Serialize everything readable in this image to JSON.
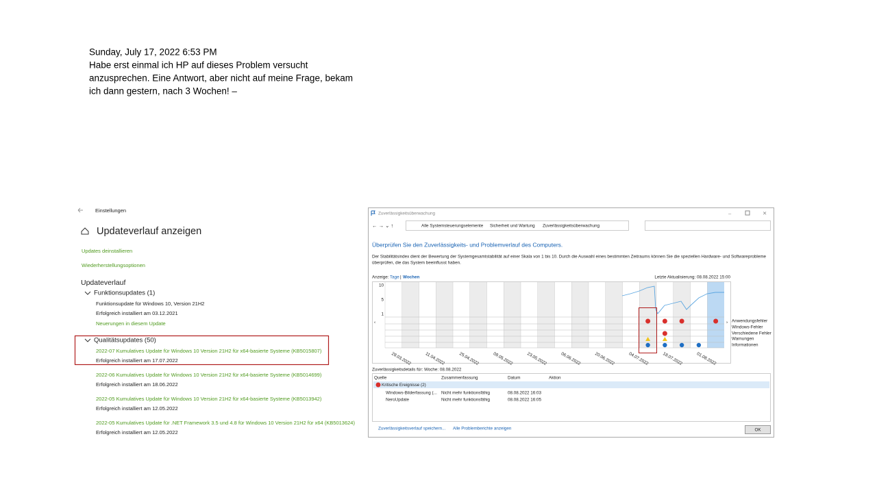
{
  "note": {
    "date": "Sunday, July 17, 2022 6:53 PM",
    "lines": [
      "Habe erst einmal ich HP auf dieses Problem versucht",
      "anzusprechen.  Eine Antwort,  aber nicht auf meine Frage, bekam",
      "ich dann gestern, nach 3 Wochen! –"
    ]
  },
  "settings": {
    "breadcrumb": "Einstellungen",
    "title": "Updateverlauf anzeigen",
    "links": [
      "Updates deinstallieren",
      "Wiederherstellungsoptionen"
    ],
    "section": "Updateverlauf",
    "feature": {
      "heading": "Funktionsupdates (1)",
      "name": "Funktionsupdate für Windows 10, Version 21H2",
      "status": "Erfolgreich installiert am 03.12.2021",
      "link": "Neuerungen in diesem Update"
    },
    "quality": {
      "heading": "Qualitätsupdates (50)",
      "items": [
        {
          "name": "2022-07 Kumulatives Update für Windows 10 Version 21H2 für x64-basierte Systeme (KB5015807)",
          "status": "Erfolgreich installiert am 17.07.2022"
        },
        {
          "name": "2022-06 Kumulatives Update für Windows 10 Version 21H2 für x64-basierte Systeme (KB5014699)",
          "status": "Erfolgreich installiert am 18.06.2022"
        },
        {
          "name": "2022-05 Kumulatives Update für Windows 10 Version 21H2 für x64-basierte Systeme (KB5013942)",
          "status": "Erfolgreich installiert am 12.05.2022"
        },
        {
          "name": "2022-05 Kumulatives Update für .NET Framework 3.5 und 4.8 für Windows 10 Version 21H2 für x64 (KB5013624)",
          "status": "Erfolgreich installiert am 12.05.2022"
        }
      ]
    }
  },
  "monitor": {
    "title": "Zuverlässigkeitsüberwachung",
    "breadcrumbs": [
      "Alle Systemsteuerungselemente",
      "Sicherheit und Wartung",
      "Zuverlässigkeitsüberwachung"
    ],
    "heading": "Überprüfen Sie den Zuverlässigkeits- und Problemverlauf des Computers.",
    "description": [
      "Der Stabilitätsindex dient der Bewertung der Systemgesamtstabilität auf einer Skala von 1 bis 10. Durch die Auswahl eines bestimmten Zeitraums können Sie die speziellen Hardware- und Softwareprobleme",
      "überprüfen, die das System beeinflusst haben."
    ],
    "view_label": "Anzeige:",
    "view_options": [
      "Tage",
      "Wochen"
    ],
    "view_separator": "|",
    "last_update": "Letzte Aktualisierung: 08.08.2022 15:00",
    "y_labels": [
      "10",
      "5",
      "1"
    ],
    "row_labels": [
      "Anwendungsfehler",
      "Windows-Fehler",
      "Verschiedene Fehler",
      "Warnungen",
      "Informationen"
    ],
    "dates": [
      "28.03.2022",
      "11.04.2022",
      "25.04.2022",
      "09.05.2022",
      "23.05.2022",
      "06.06.2022",
      "20.06.2022",
      "04.07.2022",
      "18.07.2022",
      "01.08.2022"
    ],
    "details_title": "Zuverlässigkeitsdetails für: Woche: 08.08.2022",
    "columns": [
      "Quelle",
      "Zusammenfassung",
      "Datum",
      "Aktion"
    ],
    "group": "Kritische Ereignisse (2)",
    "rows": [
      [
        "Windows-Bilderfassung (...",
        "Nicht mehr funktionsfähig",
        "08.08.2022 16:03"
      ],
      [
        "NeroUpdate",
        "Nicht mehr funktionsfähig",
        "08.08.2022 16:05"
      ]
    ],
    "footer_links": [
      "Zuverlässigkeitsverlauf speichern...",
      "Alle Problemberichte anzeigen"
    ],
    "ok": "OK"
  }
}
